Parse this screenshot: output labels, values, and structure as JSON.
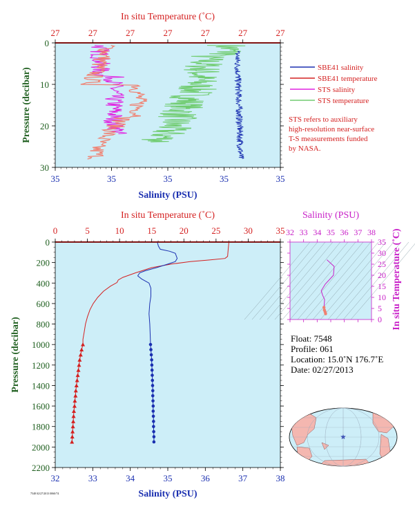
{
  "colors": {
    "plot_bg": "#cdeef8",
    "salinity": "#1a2fb0",
    "temperature": "#d42020",
    "sts_salinity": "#e020e0",
    "sts_temperature": "#70cc70",
    "axis_label_green": "#1f5f1f",
    "ts_axis": "#c820c8",
    "land": "#f4b7b0",
    "ocean": "#cdeef8"
  },
  "chart_data": [
    {
      "type": "line",
      "id": "near-surface",
      "x_top_label": "In situ Temperature (˚C)",
      "x_top_ticks": [
        "27",
        "27",
        "27",
        "27",
        "27",
        "27",
        "27"
      ],
      "x_bottom_label": "Salinity (PSU)",
      "x_bottom_ticks": [
        "35",
        "35",
        "35",
        "35",
        "35"
      ],
      "ylabel": "Pressure (decibar)",
      "y_ticks": [
        0,
        10,
        20,
        30
      ],
      "ylim": [
        0,
        30
      ],
      "legend": {
        "entries": [
          {
            "label": "SBE41 salinity",
            "color": "#1a2fb0"
          },
          {
            "label": "SBE41 temperature",
            "color": "#d42020"
          },
          {
            "label": "STS salinity",
            "color": "#e020e0"
          },
          {
            "label": "STS temperature",
            "color": "#70cc70"
          }
        ],
        "note_lines": [
          "STS refers to auxiliary",
          "high-resolution near-surface",
          "T-S measurements funded",
          "by NASA."
        ]
      }
    },
    {
      "type": "line",
      "id": "profile",
      "x_top_label": "In situ Temperature (˚C)",
      "x_top_ticks": [
        0,
        5,
        10,
        15,
        20,
        25,
        30,
        35
      ],
      "xlim_top": [
        0,
        35
      ],
      "x_bottom_label": "Salinity (PSU)",
      "x_bottom_ticks": [
        32,
        33,
        34,
        35,
        36,
        37,
        38
      ],
      "xlim_bottom": [
        32,
        38
      ],
      "ylabel": "Pressure (decibar)",
      "y_ticks": [
        0,
        200,
        400,
        600,
        800,
        1000,
        1200,
        1400,
        1600,
        1800,
        2000,
        2200
      ],
      "ylim": [
        0,
        2200
      ],
      "series": [
        {
          "name": "SBE41 temperature",
          "axis": "top",
          "points": [
            [
              27.0,
              0
            ],
            [
              26.9,
              60
            ],
            [
              26.8,
              140
            ],
            [
              26.4,
              160
            ],
            [
              24,
              175
            ],
            [
              21,
              190
            ],
            [
              18,
              215
            ],
            [
              15,
              250
            ],
            [
              12.5,
              300
            ],
            [
              10.5,
              345
            ],
            [
              9.8,
              370
            ],
            [
              9.6,
              395
            ],
            [
              8.6,
              430
            ],
            [
              7.5,
              480
            ],
            [
              6.6,
              540
            ],
            [
              5.9,
              600
            ],
            [
              5.4,
              660
            ],
            [
              5.0,
              730
            ],
            [
              4.7,
              800
            ],
            [
              4.5,
              880
            ],
            [
              4.3,
              950
            ],
            [
              4.3,
              1000
            ]
          ],
          "markers": [
            [
              4.3,
              1000
            ],
            [
              4.1,
              1050
            ],
            [
              3.95,
              1100
            ],
            [
              3.8,
              1150
            ],
            [
              3.7,
              1200
            ],
            [
              3.6,
              1250
            ],
            [
              3.5,
              1300
            ],
            [
              3.4,
              1350
            ],
            [
              3.3,
              1400
            ],
            [
              3.2,
              1450
            ],
            [
              3.15,
              1500
            ],
            [
              3.05,
              1550
            ],
            [
              3.0,
              1600
            ],
            [
              2.9,
              1650
            ],
            [
              2.85,
              1700
            ],
            [
              2.8,
              1750
            ],
            [
              2.75,
              1800
            ],
            [
              2.7,
              1850
            ],
            [
              2.65,
              1900
            ],
            [
              2.6,
              1950
            ]
          ]
        },
        {
          "name": "SBE41 salinity",
          "axis": "bottom",
          "points": [
            [
              34.72,
              0
            ],
            [
              34.75,
              40
            ],
            [
              34.8,
              70
            ],
            [
              35.05,
              90
            ],
            [
              35.2,
              110
            ],
            [
              35.25,
              160
            ],
            [
              35.2,
              190
            ],
            [
              35.0,
              215
            ],
            [
              34.7,
              250
            ],
            [
              34.4,
              280
            ],
            [
              34.25,
              300
            ],
            [
              34.2,
              330
            ],
            [
              34.3,
              360
            ],
            [
              34.5,
              400
            ],
            [
              34.55,
              450
            ],
            [
              34.55,
              530
            ],
            [
              34.52,
              600
            ],
            [
              34.5,
              700
            ],
            [
              34.52,
              800
            ],
            [
              34.53,
              900
            ],
            [
              34.54,
              1000
            ]
          ],
          "markers": [
            [
              34.54,
              1000
            ],
            [
              34.55,
              1050
            ],
            [
              34.56,
              1100
            ],
            [
              34.57,
              1150
            ],
            [
              34.575,
              1200
            ],
            [
              34.58,
              1250
            ],
            [
              34.585,
              1300
            ],
            [
              34.59,
              1350
            ],
            [
              34.595,
              1400
            ],
            [
              34.6,
              1450
            ],
            [
              34.6,
              1500
            ],
            [
              34.605,
              1550
            ],
            [
              34.61,
              1600
            ],
            [
              34.61,
              1650
            ],
            [
              34.615,
              1700
            ],
            [
              34.62,
              1750
            ],
            [
              34.62,
              1800
            ],
            [
              34.625,
              1850
            ],
            [
              34.63,
              1900
            ],
            [
              34.63,
              1950
            ]
          ]
        }
      ]
    },
    {
      "type": "scatter",
      "id": "ts-diagram",
      "x_top_label": "Salinity (PSU)",
      "x_ticks": [
        32,
        33,
        34,
        35,
        36,
        37,
        38
      ],
      "xlim": [
        32,
        38
      ],
      "ylabel": "In situ Temperature (˚C)",
      "y_ticks": [
        0,
        5,
        10,
        15,
        20,
        25,
        30,
        35
      ],
      "ylim": [
        0,
        35
      ],
      "points": [
        [
          34.72,
          27
        ],
        [
          34.8,
          26.5
        ],
        [
          35.25,
          24
        ],
        [
          35.2,
          20
        ],
        [
          34.6,
          16
        ],
        [
          34.3,
          13
        ],
        [
          34.4,
          11
        ],
        [
          34.55,
          9
        ],
        [
          34.52,
          7
        ],
        [
          34.5,
          5.5
        ],
        [
          34.53,
          4.3
        ],
        [
          34.58,
          3.5
        ],
        [
          34.62,
          2.6
        ]
      ]
    }
  ],
  "float_info": {
    "float": "Float:  7548",
    "profile": "Profile:  061",
    "location": "Location:  15.0˚N  176.7˚E",
    "date": "Date:  02/27/2013"
  },
  "footer": "7548 02/27/2013 0060/74"
}
